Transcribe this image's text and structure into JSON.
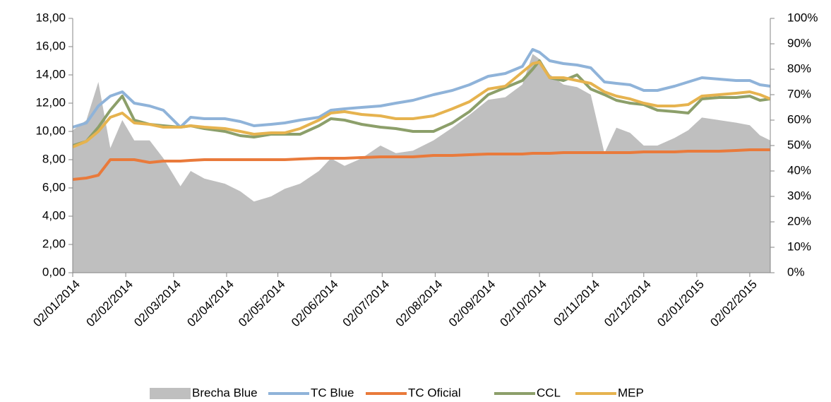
{
  "chart_data": {
    "type": "line",
    "x": [
      "02/01/2014",
      "10/01/2014",
      "17/01/2014",
      "24/01/2014",
      "31/01/2014",
      "07/02/2014",
      "16/02/2014",
      "24/02/2014",
      "06/03/2014",
      "12/03/2014",
      "20/03/2014",
      "01/04/2014",
      "10/04/2014",
      "18/04/2014",
      "28/04/2014",
      "06/05/2014",
      "15/05/2014",
      "26/05/2014",
      "02/06/2014",
      "10/06/2014",
      "20/06/2014",
      "01/07/2014",
      "10/07/2014",
      "20/07/2014",
      "01/08/2014",
      "12/08/2014",
      "22/08/2014",
      "02/09/2014",
      "12/09/2014",
      "22/09/2014",
      "28/09/2014",
      "02/10/2014",
      "08/10/2014",
      "16/10/2014",
      "24/10/2014",
      "01/11/2014",
      "09/11/2014",
      "16/11/2014",
      "24/11/2014",
      "02/12/2014",
      "10/12/2014",
      "20/12/2014",
      "28/12/2014",
      "05/01/2015",
      "15/01/2015",
      "25/01/2015",
      "02/02/2015",
      "08/02/2015",
      "14/02/2015"
    ],
    "series": [
      {
        "name": "Brecha Blue",
        "color": "#bfbfbf",
        "kind": "area",
        "axis": "y2",
        "values": [
          56,
          60,
          75,
          49,
          60,
          52,
          52,
          45,
          34,
          40,
          37,
          35,
          32,
          28,
          30,
          33,
          35,
          40,
          45,
          42,
          45,
          50,
          47,
          48,
          52,
          57,
          62,
          68,
          69,
          74,
          86,
          84,
          78,
          74,
          73,
          70,
          47,
          57,
          55,
          50,
          50,
          53,
          56,
          61,
          60,
          59,
          58,
          54,
          52
        ]
      },
      {
        "name": "TC Blue",
        "color": "#8fb3d9",
        "kind": "line",
        "values": [
          10.3,
          10.6,
          11.8,
          12.5,
          12.8,
          12.0,
          11.8,
          11.5,
          10.3,
          11.0,
          10.9,
          10.9,
          10.7,
          10.4,
          10.5,
          10.6,
          10.8,
          11.0,
          11.5,
          11.6,
          11.7,
          11.8,
          12.0,
          12.2,
          12.6,
          12.9,
          13.3,
          13.9,
          14.1,
          14.6,
          15.8,
          15.6,
          15.0,
          14.8,
          14.7,
          14.5,
          13.5,
          13.4,
          13.3,
          12.9,
          12.9,
          13.2,
          13.5,
          13.8,
          13.7,
          13.6,
          13.6,
          13.3,
          13.2
        ]
      },
      {
        "name": "TC Oficial",
        "color": "#e97a3b",
        "kind": "line",
        "values": [
          6.6,
          6.7,
          6.9,
          8.0,
          8.0,
          8.0,
          7.8,
          7.9,
          7.9,
          7.95,
          8.0,
          8.0,
          8.0,
          8.0,
          8.0,
          8.0,
          8.05,
          8.1,
          8.1,
          8.1,
          8.15,
          8.2,
          8.2,
          8.2,
          8.3,
          8.3,
          8.35,
          8.4,
          8.4,
          8.4,
          8.45,
          8.45,
          8.45,
          8.5,
          8.5,
          8.5,
          8.5,
          8.5,
          8.5,
          8.55,
          8.55,
          8.55,
          8.6,
          8.6,
          8.6,
          8.65,
          8.7,
          8.7,
          8.7
        ]
      },
      {
        "name": "CCL",
        "color": "#8c9f6a",
        "kind": "line",
        "values": [
          9.0,
          9.3,
          10.3,
          11.5,
          12.5,
          10.8,
          10.5,
          10.4,
          10.3,
          10.4,
          10.2,
          10.0,
          9.7,
          9.6,
          9.8,
          9.8,
          9.8,
          10.4,
          10.9,
          10.8,
          10.5,
          10.3,
          10.2,
          10.0,
          10.0,
          10.6,
          11.4,
          12.6,
          13.1,
          13.6,
          14.4,
          15.0,
          13.8,
          13.6,
          14.0,
          13.0,
          12.6,
          12.2,
          12.0,
          11.9,
          11.5,
          11.4,
          11.3,
          12.3,
          12.4,
          12.4,
          12.5,
          12.2,
          12.3
        ]
      },
      {
        "name": "MEP",
        "color": "#e6b34f",
        "kind": "line",
        "values": [
          8.9,
          9.3,
          10.0,
          11.0,
          11.3,
          10.6,
          10.5,
          10.3,
          10.3,
          10.4,
          10.3,
          10.2,
          10.0,
          9.8,
          9.9,
          9.9,
          10.2,
          10.8,
          11.3,
          11.4,
          11.2,
          11.1,
          10.9,
          10.9,
          11.1,
          11.6,
          12.1,
          13.0,
          13.2,
          14.2,
          14.8,
          14.9,
          13.8,
          13.8,
          13.6,
          13.4,
          12.8,
          12.5,
          12.3,
          12.0,
          11.8,
          11.8,
          11.9,
          12.5,
          12.6,
          12.7,
          12.8,
          12.6,
          12.3
        ]
      }
    ],
    "xlim": [
      "02/01/2014",
      "14/02/2015"
    ],
    "xticks": [
      "02/01/2014",
      "02/02/2014",
      "02/03/2014",
      "02/04/2014",
      "02/05/2014",
      "02/06/2014",
      "02/07/2014",
      "02/08/2014",
      "02/09/2014",
      "02/10/2014",
      "02/11/2014",
      "02/12/2014",
      "02/01/2015",
      "02/02/2015"
    ],
    "ylim": [
      0,
      18
    ],
    "yticks": [
      {
        "value": 0,
        "label": "0,00"
      },
      {
        "value": 2,
        "label": "2,00"
      },
      {
        "value": 4,
        "label": "4,00"
      },
      {
        "value": 6,
        "label": "6,00"
      },
      {
        "value": 8,
        "label": "8,00"
      },
      {
        "value": 10,
        "label": "10,00"
      },
      {
        "value": 12,
        "label": "12,00"
      },
      {
        "value": 14,
        "label": "14,00"
      },
      {
        "value": 16,
        "label": "16,00"
      },
      {
        "value": 18,
        "label": "18,00"
      }
    ],
    "y2lim": [
      0,
      100
    ],
    "y2ticks": [
      {
        "value": 0,
        "label": "0%"
      },
      {
        "value": 10,
        "label": "10%"
      },
      {
        "value": 20,
        "label": "20%"
      },
      {
        "value": 30,
        "label": "30%"
      },
      {
        "value": 40,
        "label": "40%"
      },
      {
        "value": 50,
        "label": "50%"
      },
      {
        "value": 60,
        "label": "60%"
      },
      {
        "value": 70,
        "label": "70%"
      },
      {
        "value": 80,
        "label": "80%"
      },
      {
        "value": 90,
        "label": "90%"
      },
      {
        "value": 100,
        "label": "100%"
      }
    ],
    "legend": "bottom"
  }
}
